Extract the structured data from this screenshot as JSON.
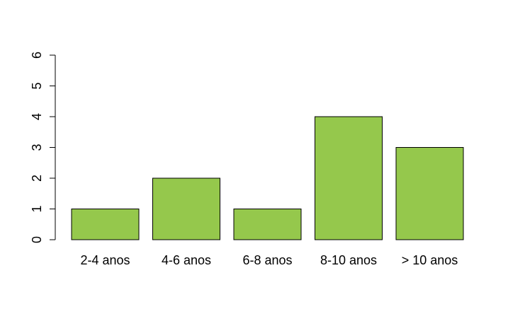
{
  "chart_data": {
    "type": "bar",
    "categories": [
      "2-4 anos",
      "4-6 anos",
      "6-8 anos",
      "8-10 anos",
      "> 10 anos"
    ],
    "values": [
      1,
      2,
      1,
      4,
      3
    ],
    "title": "",
    "xlabel": "",
    "ylabel": "",
    "ylim": [
      0,
      6
    ],
    "yticks": [
      "0",
      "1",
      "2",
      "3",
      "4",
      "5",
      "6"
    ],
    "grid": false,
    "legend": "none",
    "colors": {
      "bar_fill": "#95c84c",
      "bar_stroke": "#000000",
      "axis": "#000000",
      "background": "#ffffff"
    }
  }
}
